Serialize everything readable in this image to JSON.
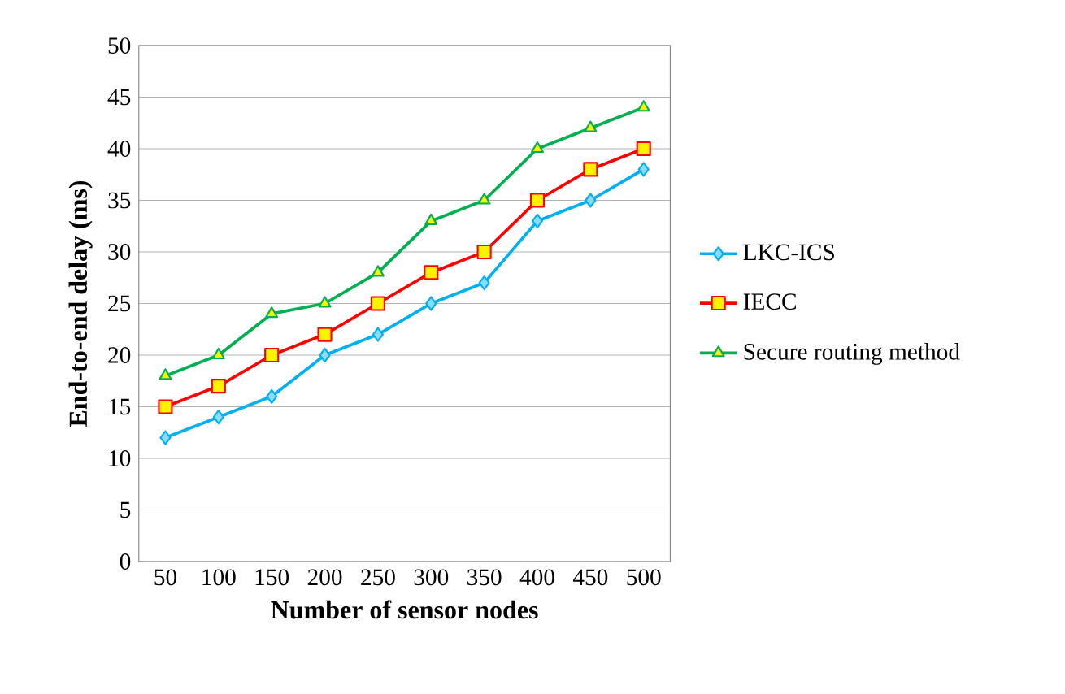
{
  "chart_data": {
    "type": "line",
    "xlabel": "Number of sensor nodes",
    "ylabel": "End-to-end delay (ms)",
    "categories": [
      "50",
      "100",
      "150",
      "200",
      "250",
      "300",
      "350",
      "400",
      "450",
      "500"
    ],
    "series": [
      {
        "name": "LKC-ICS",
        "color": "#00b0f0",
        "marker": "diamond",
        "values": [
          12,
          14,
          16,
          20,
          22,
          25,
          27,
          33,
          35,
          38
        ]
      },
      {
        "name": "IECC",
        "color": "#ff0000",
        "marker": "square",
        "values": [
          15,
          17,
          20,
          22,
          25,
          28,
          30,
          35,
          38,
          40
        ]
      },
      {
        "name": "Secure routing method",
        "color": "#00b050",
        "marker": "triangle",
        "values": [
          18,
          20,
          24,
          25,
          28,
          33,
          35,
          40,
          42,
          44
        ]
      }
    ],
    "ylim": [
      0,
      50
    ],
    "yticks": [
      0,
      5,
      10,
      15,
      20,
      25,
      30,
      35,
      40,
      45,
      50
    ],
    "grid": "y",
    "legend": "right",
    "line_style": "solid"
  }
}
